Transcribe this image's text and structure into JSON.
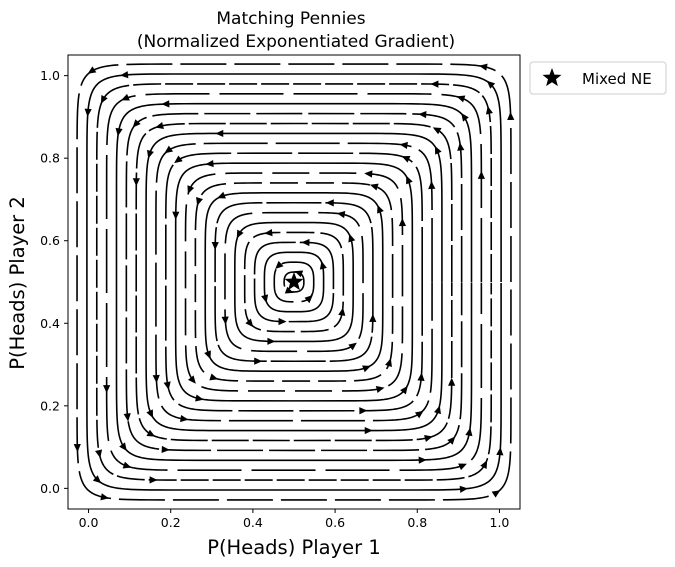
{
  "chart_data": {
    "type": "streamplot",
    "title": "Matching Pennies\n(Normalized Exponentiated Gradient)",
    "title_lines": [
      "Matching Pennies",
      "(Normalized Exponentiated Gradient)"
    ],
    "xlabel": "P(Heads) Player 1",
    "ylabel": "P(Heads) Player 2",
    "xlim": [
      -0.05,
      1.05
    ],
    "ylim": [
      -0.05,
      1.05
    ],
    "xticks": [
      0.0,
      0.2,
      0.4,
      0.6,
      0.8,
      1.0
    ],
    "yticks": [
      0.0,
      0.2,
      0.4,
      0.6,
      0.8,
      1.0
    ],
    "xtick_labels": [
      "0.0",
      "0.2",
      "0.4",
      "0.6",
      "0.8",
      "1.0"
    ],
    "ytick_labels": [
      "0.0",
      "0.2",
      "0.4",
      "0.6",
      "0.8",
      "1.0"
    ],
    "grid": false,
    "flow_direction": "counterclockwise",
    "equilibrium": {
      "x": 0.5,
      "y": 0.5,
      "marker": "star",
      "label": "Mixed NE"
    },
    "legend": {
      "position": "outside-top-right",
      "entries": [
        "Mixed NE"
      ]
    },
    "stream_color": "#000000"
  }
}
